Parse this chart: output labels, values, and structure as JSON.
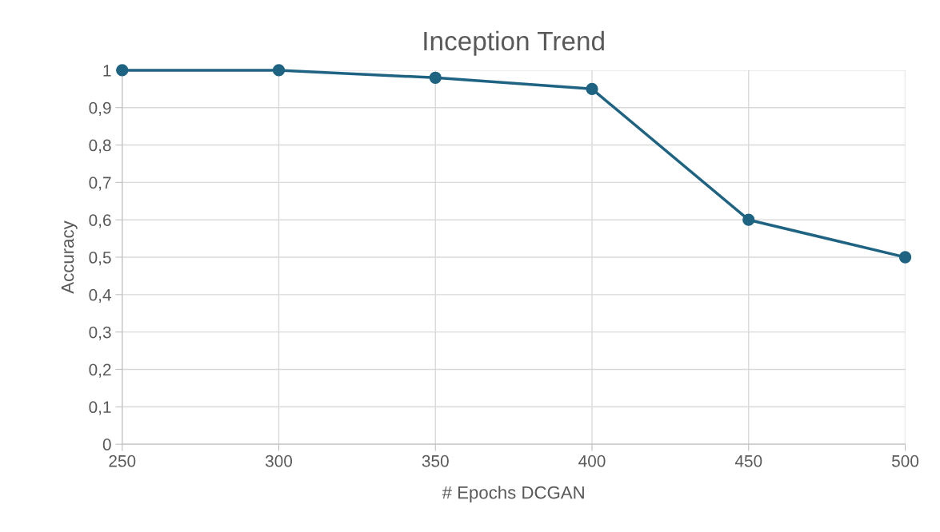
{
  "chart_data": {
    "type": "line",
    "title": "Inception Trend",
    "xlabel": "# Epochs DCGAN",
    "ylabel": "Accuracy",
    "x": [
      250,
      300,
      350,
      400,
      450,
      500
    ],
    "series": [
      {
        "color": "#1f6382",
        "values": [
          1,
          1,
          0.98,
          0.95,
          0.6,
          0.5
        ]
      }
    ],
    "xlim": [
      250,
      500
    ],
    "xticks": [
      250,
      300,
      350,
      400,
      450,
      500
    ],
    "ylim": [
      0,
      1
    ],
    "yticks": [
      0,
      {
        "value": 0.1,
        "label": "0,1"
      },
      {
        "value": 0.2,
        "label": "0,2"
      },
      {
        "value": 0.3,
        "label": "0,3"
      },
      {
        "value": 0.4,
        "label": "0,4"
      },
      {
        "value": 0.5,
        "label": "0,5"
      },
      {
        "value": 0.6,
        "label": "0,6"
      },
      {
        "value": 0.7,
        "label": "0,7"
      },
      {
        "value": 0.8,
        "label": "0,8"
      },
      {
        "value": 0.9,
        "label": "0,9"
      },
      1
    ],
    "grid": true,
    "marker": "circle",
    "line_style": "solid"
  }
}
